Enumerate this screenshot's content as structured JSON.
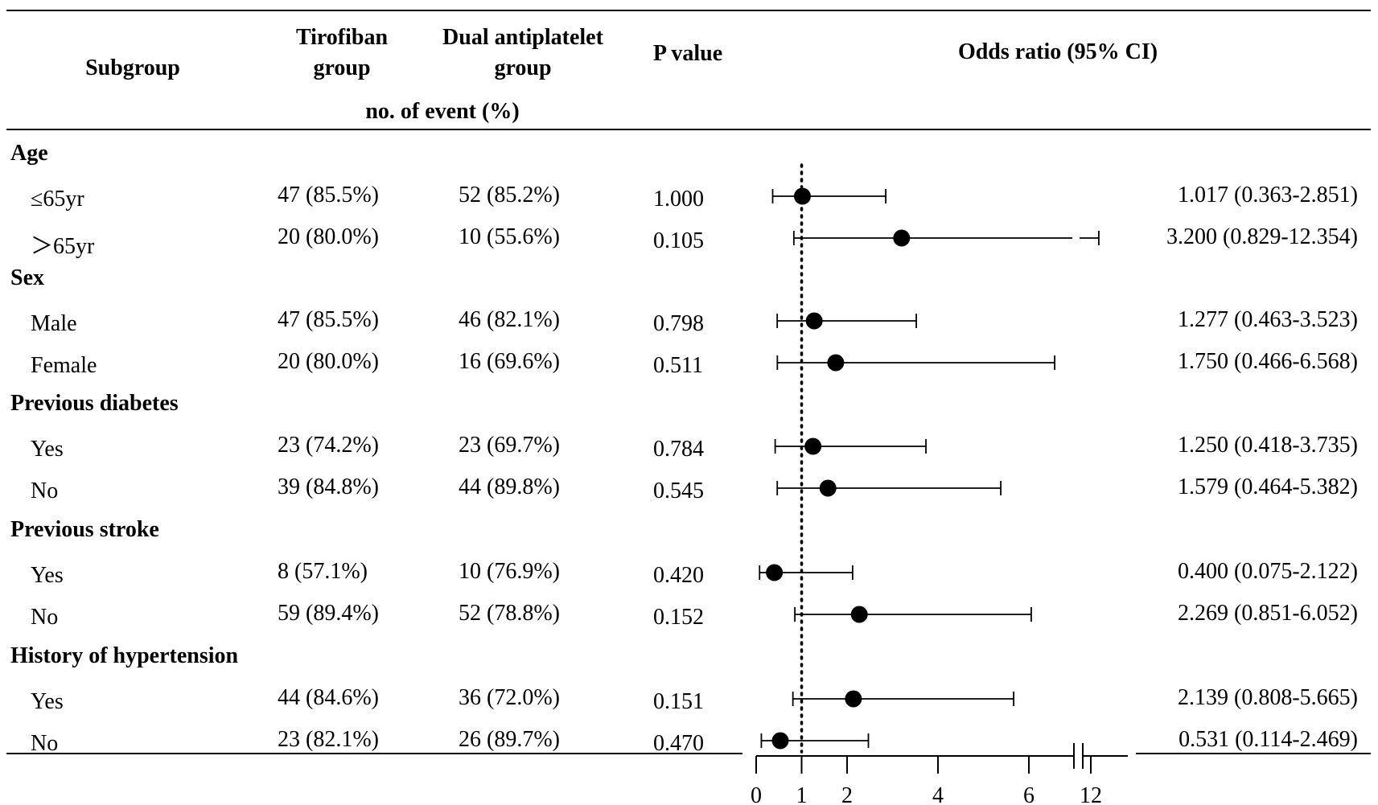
{
  "header": {
    "subgroup": "Subgroup",
    "tirofiban": [
      "Tirofiban",
      "group"
    ],
    "dual": [
      "Dual antiplatelet",
      "group"
    ],
    "pvalue": "P value",
    "odds": "Odds ratio (95% CI)",
    "events_note": "no. of event (%)"
  },
  "groups": [
    {
      "title": "Age",
      "rows": [
        {
          "label": "≤65yr",
          "tirofiban": "47 (85.5%)",
          "dual": "52 (85.2%)",
          "p": "1.000",
          "or_text": "1.017 (0.363-2.851)",
          "or": 1.017,
          "lo": 0.363,
          "hi": 2.851
        },
        {
          "label": "＞65yr",
          "tirofiban": "20 (80.0%)",
          "dual": "10 (55.6%)",
          "p": "0.105",
          "or_text": "3.200 (0.829-12.354)",
          "or": 3.2,
          "lo": 0.829,
          "hi": 12.354
        }
      ]
    },
    {
      "title": "Sex",
      "rows": [
        {
          "label": "Male",
          "tirofiban": "47 (85.5%)",
          "dual": "46 (82.1%)",
          "p": "0.798",
          "or_text": "1.277 (0.463-3.523)",
          "or": 1.277,
          "lo": 0.463,
          "hi": 3.523
        },
        {
          "label": "Female",
          "tirofiban": "20 (80.0%)",
          "dual": "16 (69.6%)",
          "p": "0.511",
          "or_text": "1.750 (0.466-6.568)",
          "or": 1.75,
          "lo": 0.466,
          "hi": 6.568
        }
      ]
    },
    {
      "title": "Previous diabetes",
      "rows": [
        {
          "label": "Yes",
          "tirofiban": "23 (74.2%)",
          "dual": "23 (69.7%)",
          "p": "0.784",
          "or_text": "1.250 (0.418-3.735)",
          "or": 1.25,
          "lo": 0.418,
          "hi": 3.735
        },
        {
          "label": "No",
          "tirofiban": "39 (84.8%)",
          "dual": "44 (89.8%)",
          "p": "0.545",
          "or_text": "1.579 (0.464-5.382)",
          "or": 1.579,
          "lo": 0.464,
          "hi": 5.382
        }
      ]
    },
    {
      "title": "Previous stroke",
      "rows": [
        {
          "label": "Yes",
          "tirofiban": "8 (57.1%)",
          "dual": "10 (76.9%)",
          "p": "0.420",
          "or_text": "0.400 (0.075-2.122)",
          "or": 0.4,
          "lo": 0.075,
          "hi": 2.122
        },
        {
          "label": "No",
          "tirofiban": "59 (89.4%)",
          "dual": "52 (78.8%)",
          "p": "0.152",
          "or_text": "2.269 (0.851-6.052)",
          "or": 2.269,
          "lo": 0.851,
          "hi": 6.052
        }
      ]
    },
    {
      "title": "History of hypertension",
      "rows": [
        {
          "label": "Yes",
          "tirofiban": "44 (84.6%)",
          "dual": "36 (72.0%)",
          "p": "0.151",
          "or_text": "2.139 (0.808-5.665)",
          "or": 2.139,
          "lo": 0.808,
          "hi": 5.665
        },
        {
          "label": "No",
          "tirofiban": "23 (82.1%)",
          "dual": "26 (89.7%)",
          "p": "0.470",
          "or_text": "0.531 (0.114-2.469)",
          "or": 0.531,
          "lo": 0.114,
          "hi": 2.469
        }
      ]
    }
  ],
  "chart_data": {
    "type": "forest",
    "xlabel": "Odds ratio (95% CI)",
    "reference_line": 1,
    "x_ticks": [
      "0",
      "1",
      "2",
      "4",
      "6",
      "12"
    ],
    "x_axis_break": "between 6 and 12",
    "categories": [
      "Age ≤65yr",
      "Age ＞65yr",
      "Sex Male",
      "Sex Female",
      "Previous diabetes Yes",
      "Previous diabetes No",
      "Previous stroke Yes",
      "Previous stroke No",
      "History of hypertension Yes",
      "History of hypertension No"
    ],
    "or": [
      1.017,
      3.2,
      1.277,
      1.75,
      1.25,
      1.579,
      0.4,
      2.269,
      2.139,
      0.531
    ],
    "ci_low": [
      0.363,
      0.829,
      0.463,
      0.466,
      0.418,
      0.464,
      0.075,
      0.851,
      0.808,
      0.114
    ],
    "ci_high": [
      2.851,
      12.354,
      3.523,
      6.568,
      3.735,
      5.382,
      2.122,
      6.052,
      5.665,
      2.469
    ]
  }
}
